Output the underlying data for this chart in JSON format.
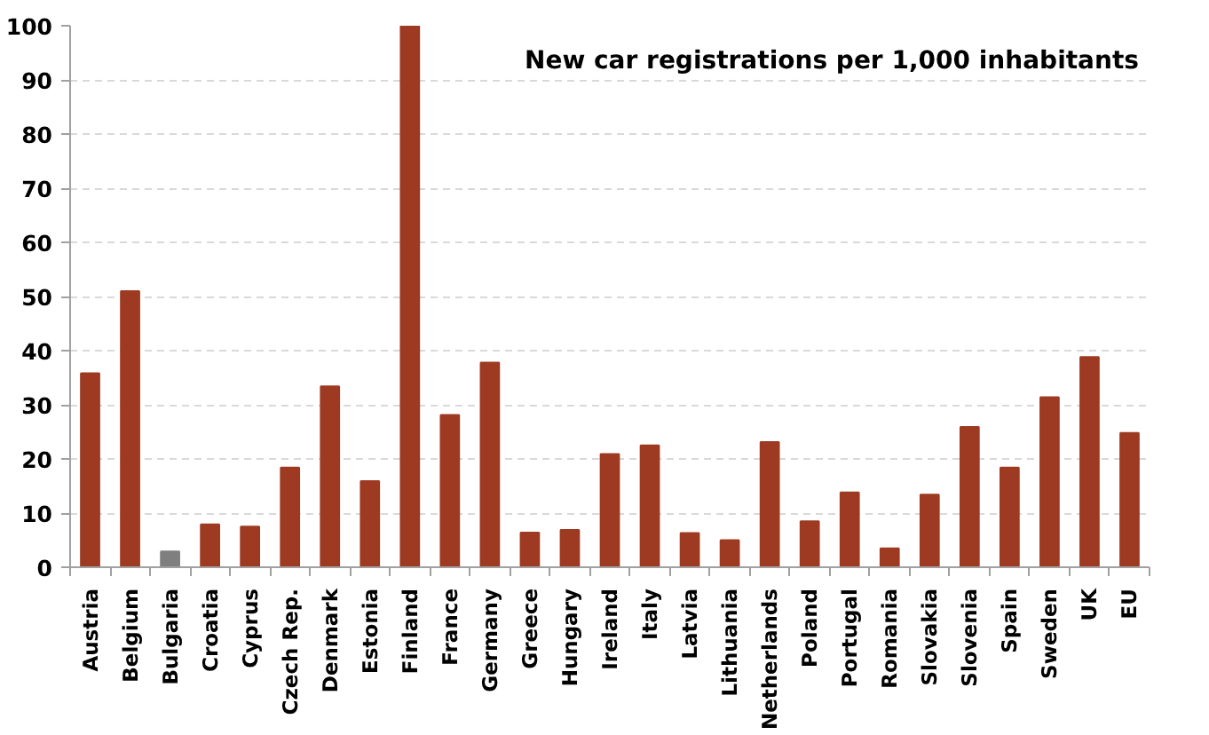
{
  "chart_data": {
    "type": "bar",
    "title": "New car registrations per 1,000 inhabitants",
    "categories": [
      "Austria",
      "Belgium",
      "Bulgaria",
      "Croatia",
      "Cyprus",
      "Czech Rep.",
      "Denmark",
      "Estonia",
      "Finland",
      "France",
      "Germany",
      "Greece",
      "Hungary",
      "Ireland",
      "Italy",
      "Latvia",
      "Lithuania",
      "Netherlands",
      "Poland",
      "Portugal",
      "Romania",
      "Slovakia",
      "Slovenia",
      "Spain",
      "Sweden",
      "UK",
      "EU"
    ],
    "values": [
      35.8,
      51.0,
      2.9,
      7.9,
      7.5,
      18.4,
      33.4,
      15.9,
      100,
      28.1,
      37.8,
      6.4,
      6.9,
      20.9,
      22.5,
      6.3,
      5.0,
      23.1,
      8.5,
      13.8,
      3.5,
      13.4,
      25.9,
      18.4,
      31.4,
      38.8,
      24.8
    ],
    "colors": [
      "#9e3a22",
      "#9e3a22",
      "#7f7f7f",
      "#9e3a22",
      "#9e3a22",
      "#9e3a22",
      "#9e3a22",
      "#9e3a22",
      "#9e3a22",
      "#9e3a22",
      "#9e3a22",
      "#9e3a22",
      "#9e3a22",
      "#9e3a22",
      "#9e3a22",
      "#9e3a22",
      "#9e3a22",
      "#9e3a22",
      "#9e3a22",
      "#9e3a22",
      "#9e3a22",
      "#9e3a22",
      "#9e3a22",
      "#9e3a22",
      "#9e3a22",
      "#9e3a22",
      "#9e3a22"
    ],
    "ylim": [
      0,
      100
    ],
    "yticks": [
      0,
      10,
      20,
      30,
      40,
      50,
      60,
      70,
      80,
      90,
      100
    ],
    "grid": "y"
  }
}
